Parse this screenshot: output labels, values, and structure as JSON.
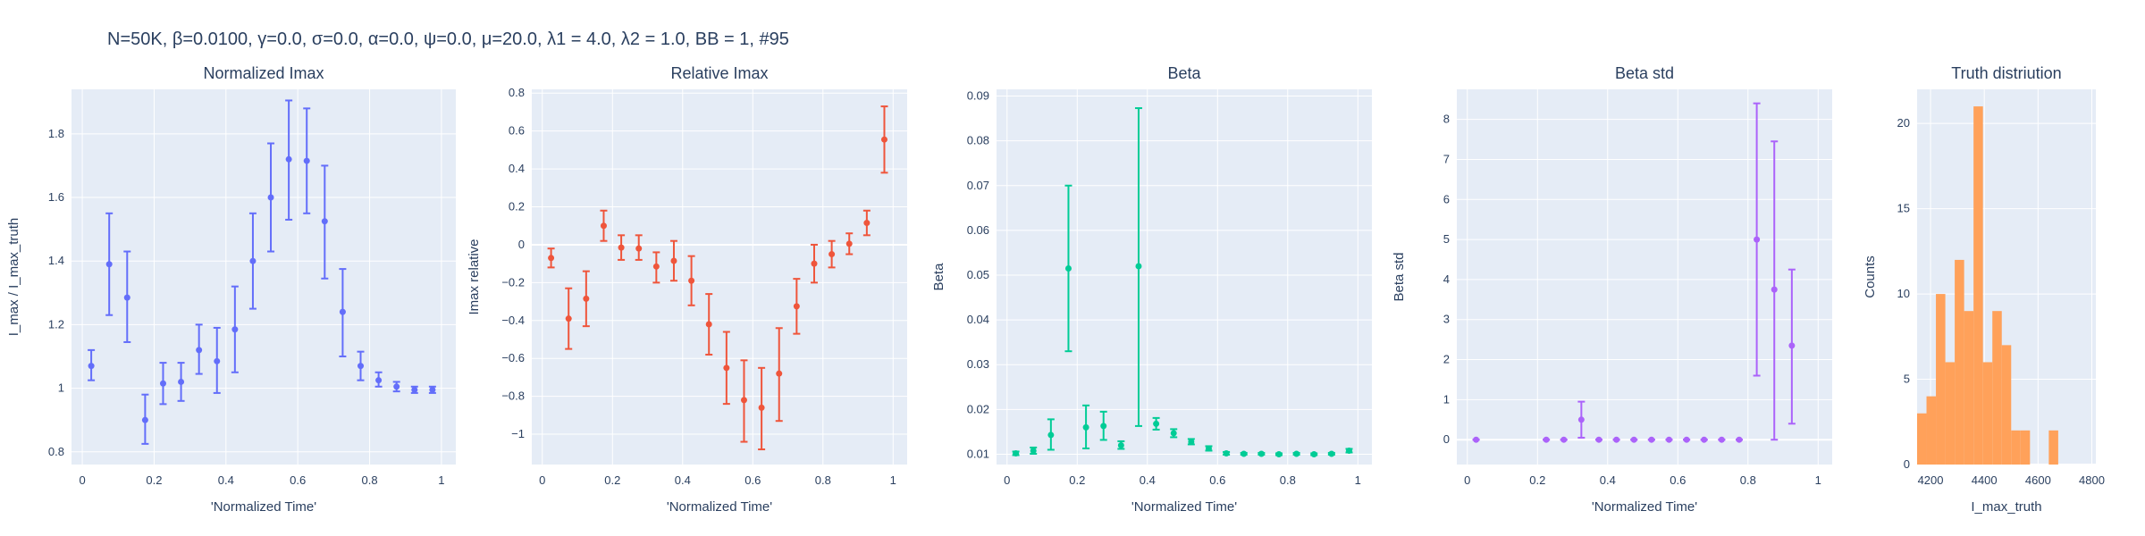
{
  "figure_title": "N=50K, β=0.0100, γ=0.0, σ=0.0,  α=0.0, ψ=0.0, μ=20.0, λ1 = 4.0, λ2 = 1.0, BB = 1, #95",
  "chart_data": [
    {
      "type": "scatter",
      "title": "Normalized Imax",
      "xlabel": "'Normalized Time'",
      "ylabel": "I_max / I_max_truth",
      "color": "#636efa",
      "xlim": [
        -0.03,
        1.04
      ],
      "ylim": [
        0.76,
        1.94
      ],
      "grid": true,
      "xticks": [
        "0",
        "0.2",
        "0.4",
        "0.6",
        "0.8",
        "1"
      ],
      "yticks": [
        "0.8",
        "1",
        "1.2",
        "1.4",
        "1.6",
        "1.8"
      ],
      "x": [
        0.025,
        0.075,
        0.125,
        0.175,
        0.225,
        0.275,
        0.325,
        0.375,
        0.425,
        0.475,
        0.525,
        0.575,
        0.625,
        0.675,
        0.725,
        0.775,
        0.825,
        0.875,
        0.925,
        0.975
      ],
      "y": [
        1.07,
        1.39,
        1.285,
        0.9,
        1.015,
        1.02,
        1.12,
        1.085,
        1.185,
        1.4,
        1.6,
        1.72,
        1.715,
        1.525,
        1.24,
        1.07,
        1.025,
        1.005,
        0.995,
        0.995
      ],
      "err_low": [
        1.025,
        1.23,
        1.145,
        0.825,
        0.95,
        0.96,
        1.045,
        0.985,
        1.05,
        1.25,
        1.43,
        1.53,
        1.55,
        1.345,
        1.1,
        1.025,
        1.005,
        0.99,
        0.985,
        0.985
      ],
      "err_high": [
        1.12,
        1.55,
        1.43,
        0.98,
        1.08,
        1.08,
        1.2,
        1.19,
        1.32,
        1.55,
        1.77,
        1.905,
        1.88,
        1.7,
        1.375,
        1.115,
        1.05,
        1.02,
        1.005,
        1.005
      ]
    },
    {
      "type": "scatter",
      "title": "Relative Imax",
      "xlabel": "'Normalized Time'",
      "ylabel": "Imax relative",
      "color": "#ef553b",
      "xlim": [
        -0.03,
        1.04
      ],
      "ylim": [
        -1.16,
        0.82
      ],
      "grid": true,
      "xticks": [
        "0",
        "0.2",
        "0.4",
        "0.6",
        "0.8",
        "1"
      ],
      "yticks": [
        "−1",
        "−0.8",
        "−0.6",
        "−0.4",
        "−0.2",
        "0",
        "0.2",
        "0.4",
        "0.6",
        "0.8"
      ],
      "x": [
        0.025,
        0.075,
        0.125,
        0.175,
        0.225,
        0.275,
        0.325,
        0.375,
        0.425,
        0.475,
        0.525,
        0.575,
        0.625,
        0.675,
        0.725,
        0.775,
        0.825,
        0.875,
        0.925,
        0.975
      ],
      "y": [
        -0.07,
        -0.39,
        -0.285,
        0.1,
        -0.015,
        -0.02,
        -0.115,
        -0.085,
        -0.19,
        -0.42,
        -0.65,
        -0.82,
        -0.86,
        -0.68,
        -0.325,
        -0.1,
        -0.05,
        0.005,
        0.115,
        0.555
      ],
      "err_low": [
        -0.12,
        -0.55,
        -0.43,
        0.02,
        -0.08,
        -0.08,
        -0.2,
        -0.19,
        -0.32,
        -0.58,
        -0.84,
        -1.04,
        -1.08,
        -0.93,
        -0.47,
        -0.2,
        -0.12,
        -0.05,
        0.05,
        0.38
      ],
      "err_high": [
        -0.02,
        -0.23,
        -0.14,
        0.18,
        0.05,
        0.05,
        -0.04,
        0.02,
        -0.06,
        -0.26,
        -0.46,
        -0.61,
        -0.65,
        -0.44,
        -0.18,
        0.0,
        0.02,
        0.06,
        0.18,
        0.73
      ]
    },
    {
      "type": "scatter",
      "title": "Beta",
      "xlabel": "'Normalized Time'",
      "ylabel": "Beta",
      "color": "#00cc96",
      "xlim": [
        -0.03,
        1.04
      ],
      "ylim": [
        0.0077,
        0.0915
      ],
      "grid": true,
      "xticks": [
        "0",
        "0.2",
        "0.4",
        "0.6",
        "0.8",
        "1"
      ],
      "yticks": [
        "0.01",
        "0.02",
        "0.03",
        "0.04",
        "0.05",
        "0.06",
        "0.07",
        "0.08",
        "0.09"
      ],
      "x": [
        0.025,
        0.075,
        0.125,
        0.175,
        0.225,
        0.275,
        0.325,
        0.375,
        0.425,
        0.475,
        0.525,
        0.575,
        0.625,
        0.675,
        0.725,
        0.775,
        0.825,
        0.875,
        0.925,
        0.975
      ],
      "y": [
        0.0102,
        0.0108,
        0.0143,
        0.0515,
        0.016,
        0.0163,
        0.012,
        0.052,
        0.0168,
        0.0147,
        0.0128,
        0.0113,
        0.0102,
        0.0101,
        0.0101,
        0.01,
        0.0101,
        0.01,
        0.0101,
        0.0108
      ],
      "err_low": [
        0.0098,
        0.0101,
        0.011,
        0.033,
        0.0113,
        0.0132,
        0.0112,
        0.0163,
        0.0155,
        0.0138,
        0.0122,
        0.0108,
        0.0099,
        0.0099,
        0.0099,
        0.0098,
        0.0099,
        0.0098,
        0.0099,
        0.0104
      ],
      "err_high": [
        0.0106,
        0.0115,
        0.0178,
        0.07,
        0.0209,
        0.0195,
        0.0129,
        0.0873,
        0.0181,
        0.0156,
        0.0134,
        0.0118,
        0.0105,
        0.0103,
        0.0103,
        0.0102,
        0.0103,
        0.0102,
        0.0103,
        0.0112
      ]
    },
    {
      "type": "scatter",
      "title": "Beta std",
      "xlabel": "'Normalized Time'",
      "ylabel": "Beta std",
      "color": "#ab63fa",
      "xlim": [
        -0.03,
        1.04
      ],
      "ylim": [
        -0.62,
        8.75
      ],
      "grid": true,
      "xticks": [
        "0",
        "0.2",
        "0.4",
        "0.6",
        "0.8",
        "1"
      ],
      "yticks": [
        "0",
        "1",
        "2",
        "3",
        "4",
        "5",
        "6",
        "7",
        "8"
      ],
      "x": [
        0.025,
        0.225,
        0.275,
        0.325,
        0.375,
        0.425,
        0.475,
        0.525,
        0.575,
        0.625,
        0.675,
        0.725,
        0.775,
        0.825,
        0.875,
        0.925
      ],
      "y": [
        0.0,
        0.0,
        0.0,
        0.5,
        0.0,
        0.0,
        0.0,
        0.0,
        0.0,
        0.0,
        0.0,
        0.0,
        0.0,
        5.0,
        3.75,
        2.35
      ],
      "err_low": [
        0.0,
        0.0,
        0.0,
        0.05,
        0.0,
        0.0,
        0.0,
        0.0,
        0.0,
        0.0,
        0.0,
        0.0,
        0.0,
        1.6,
        0.0,
        0.4
      ],
      "err_high": [
        0.0,
        0.0,
        0.0,
        0.95,
        0.0,
        0.0,
        0.0,
        0.0,
        0.0,
        0.0,
        0.0,
        0.0,
        0.0,
        8.4,
        7.45,
        4.25
      ]
    },
    {
      "type": "bar",
      "title": "Truth distriution",
      "xlabel": "I_max_truth",
      "ylabel": "Counts",
      "color": "#ffa15a",
      "xlim": [
        4150,
        4815
      ],
      "ylim": [
        0,
        22
      ],
      "grid": true,
      "xticks": [
        "4200",
        "4400",
        "4600",
        "4800"
      ],
      "yticks": [
        "0",
        "5",
        "10",
        "15",
        "20"
      ],
      "bin_edges": [
        4150,
        4185,
        4220,
        4255,
        4290,
        4325,
        4360,
        4395,
        4430,
        4465,
        4500,
        4535,
        4570,
        4605,
        4640,
        4675,
        4710,
        4745,
        4780,
        4815
      ],
      "values": [
        3,
        4,
        10,
        6,
        12,
        9,
        21,
        6,
        9,
        7,
        2,
        2,
        0,
        0,
        2,
        0,
        0,
        0,
        0
      ]
    }
  ]
}
